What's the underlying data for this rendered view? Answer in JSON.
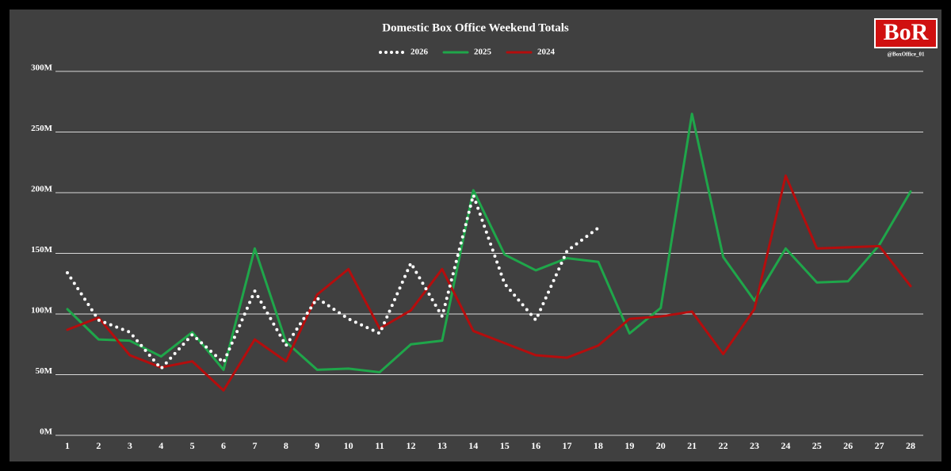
{
  "chart_data": {
    "type": "line",
    "title": "Domestic Box Office Weekend Totals",
    "categories": [
      "1",
      "2",
      "3",
      "4",
      "5",
      "6",
      "7",
      "8",
      "9",
      "10",
      "11",
      "12",
      "13",
      "14",
      "15",
      "16",
      "17",
      "18",
      "19",
      "20",
      "21",
      "22",
      "23",
      "24",
      "25",
      "26",
      "27",
      "28"
    ],
    "series": [
      {
        "name": "2026",
        "color": "#ffffff",
        "dotted": true,
        "values": [
          134000000,
          95000000,
          85000000,
          55000000,
          83000000,
          60000000,
          119000000,
          74000000,
          113000000,
          96000000,
          84000000,
          142000000,
          98000000,
          198000000,
          125000000,
          95000000,
          152000000,
          171000000,
          null,
          null,
          null,
          null,
          null,
          null,
          null,
          null,
          null,
          null
        ]
      },
      {
        "name": "2025",
        "color": "#1fa64a",
        "values": [
          104000000,
          79000000,
          78000000,
          65000000,
          85000000,
          54000000,
          154000000,
          77000000,
          54000000,
          55000000,
          52000000,
          75000000,
          78000000,
          202000000,
          149000000,
          136000000,
          146000000,
          143000000,
          84000000,
          105000000,
          265000000,
          147000000,
          111000000,
          154000000,
          126000000,
          127000000,
          157000000,
          201000000
        ]
      },
      {
        "name": "2024",
        "color": "#b50d0d",
        "values": [
          87000000,
          97000000,
          66000000,
          56000000,
          61000000,
          37000000,
          79000000,
          61000000,
          116000000,
          137000000,
          88000000,
          103000000,
          137000000,
          86000000,
          76000000,
          66000000,
          64000000,
          74000000,
          96000000,
          98000000,
          102000000,
          67000000,
          104000000,
          214000000,
          154000000,
          155000000,
          156000000,
          123000000
        ]
      }
    ],
    "ylim": [
      0,
      300000000
    ],
    "yticks": [
      {
        "value": 0,
        "label": "0M"
      },
      {
        "value": 50000000,
        "label": "50M"
      },
      {
        "value": 100000000,
        "label": "100M"
      },
      {
        "value": 150000000,
        "label": "150M"
      },
      {
        "value": 200000000,
        "label": "200M"
      },
      {
        "value": 250000000,
        "label": "250M"
      },
      {
        "value": 300000000,
        "label": "300M"
      }
    ],
    "grid": true,
    "legend": "top"
  },
  "logo": "BoR",
  "handle": "@BoxOffice_01"
}
